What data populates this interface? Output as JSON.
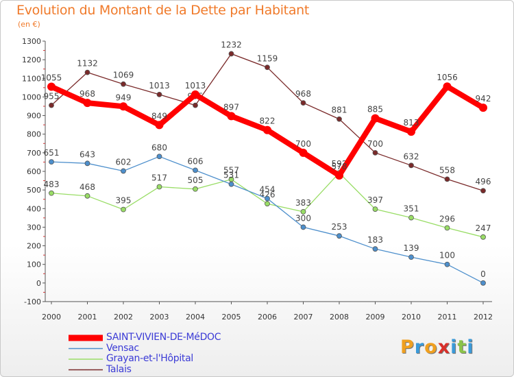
{
  "title": "Evolution du Montant de la Dette par Habitant",
  "subtitle": "(en €)",
  "logo_text": "Proxiti",
  "colors": {
    "title": "#f07a2a",
    "legend_text": "#3b3bd6",
    "axis": "#555555",
    "tick_marks": "#cc3333"
  },
  "chart_data": {
    "type": "line",
    "title": "Evolution du Montant de la Dette par Habitant",
    "ylabel": "(en €)",
    "xlabel": "",
    "ylim": [
      -100,
      1300
    ],
    "y_ticks": [
      -100,
      0,
      100,
      200,
      300,
      400,
      500,
      600,
      700,
      800,
      900,
      1000,
      1100,
      1200,
      1300
    ],
    "x": [
      "2000",
      "2001",
      "2002",
      "2003",
      "2004",
      "2005",
      "2006",
      "2007",
      "2008",
      "2009",
      "2010",
      "2011",
      "2012"
    ],
    "grid": false,
    "legend": "bottom-left",
    "series": [
      {
        "name": "SAINT-VIVIEN-DE-MéDOC",
        "color": "#ff0000",
        "values": [
          1055,
          968,
          949,
          849,
          1013,
          897,
          822,
          700,
          578,
          885,
          813,
          1056,
          942
        ]
      },
      {
        "name": "Vensac",
        "color": "#4d8fcc",
        "values": [
          651,
          643,
          602,
          680,
          606,
          531,
          454,
          300,
          253,
          183,
          139,
          100,
          0
        ]
      },
      {
        "name": "Grayan-et-l'Hôpital",
        "color": "#99dd66",
        "values": [
          483,
          468,
          395,
          517,
          505,
          557,
          426,
          383,
          592,
          397,
          351,
          296,
          247
        ]
      },
      {
        "name": "Talais",
        "color": "#7a2a2a",
        "values": [
          955,
          1132,
          1069,
          1013,
          955,
          1232,
          1159,
          968,
          881,
          700,
          632,
          558,
          496
        ]
      }
    ]
  }
}
